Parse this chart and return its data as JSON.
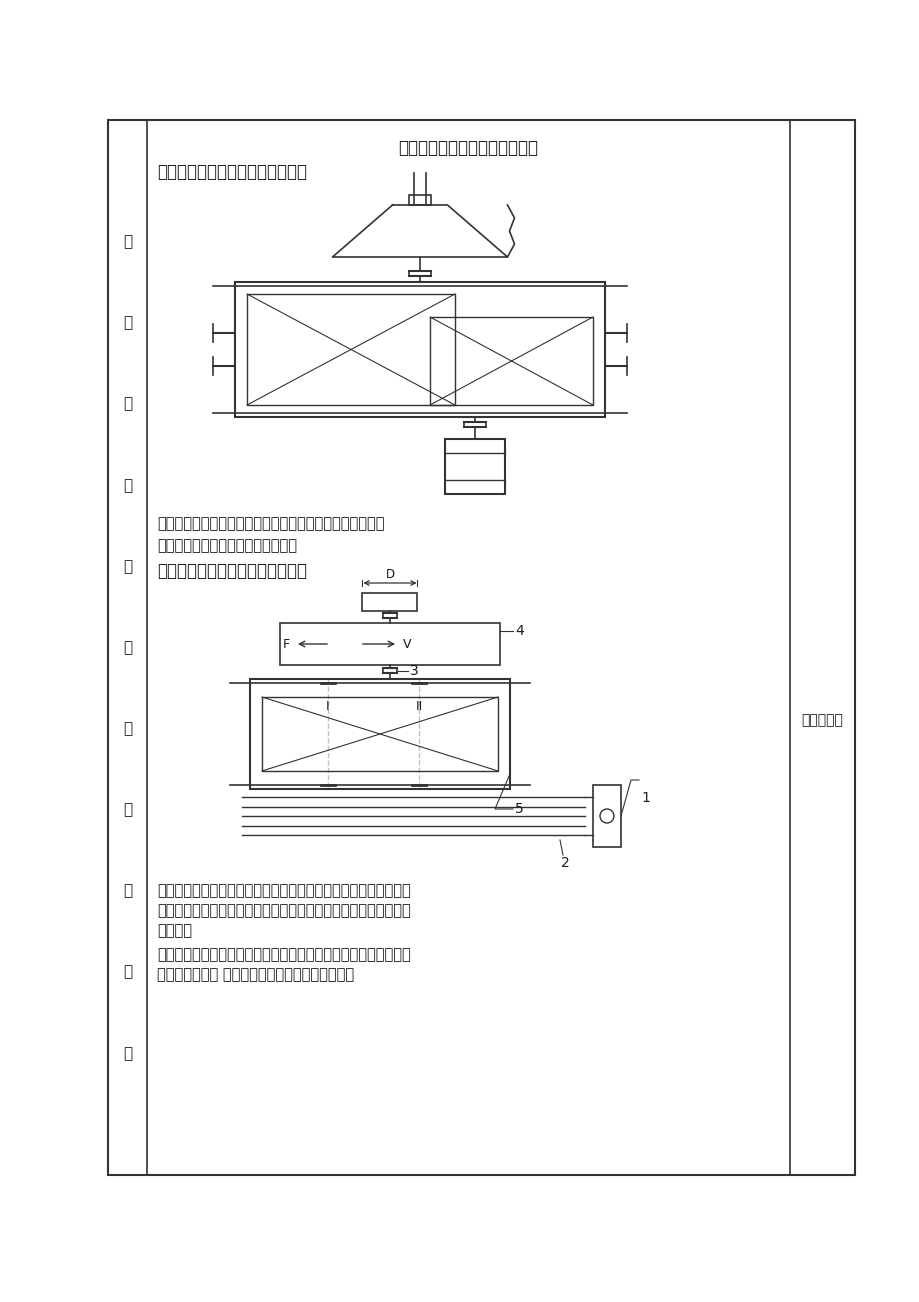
{
  "page_bg": "#ffffff",
  "border_color": "#333333",
  "text_color": "#1a1a1a",
  "line_color": "#333333",
  "title_text": "拟定的三种的方案如下图所示：",
  "scheme1_title": "方案一：采用二级圆柱齿轮减速器",
  "scheme1_pros": "优点：适合于繁重及恶劣条件下长期工作，使用维护方便。",
  "scheme1_cons": "缺点：横向尺寸较大，结构不紧凑。",
  "scheme2_title": "方案二：采用一级圆柱齿轮减速器",
  "scheme2_pros_line1": "优点：适用于两轴中心距较大的传动；带具有良好的挠性，可缓和",
  "scheme2_pros_line2": "冲击，吸收振动；过载时打滑防止损坏其他零部件；结构简单、成",
  "scheme2_pros_line3": "本低廉。",
  "scheme2_cons_line1": "缺点：传动的外廓尺寸较大；需张紧装置；由于打滑，不能保证固",
  "scheme2_cons_line2": "定不变的传动比 ；带的寿命较短；传动效率较低。",
  "side_chars": [
    "传",
    "送",
    "机",
    "传",
    "送",
    "装",
    "置",
    "方",
    "案",
    "拟",
    "定"
  ],
  "right_label": "选择方案二"
}
